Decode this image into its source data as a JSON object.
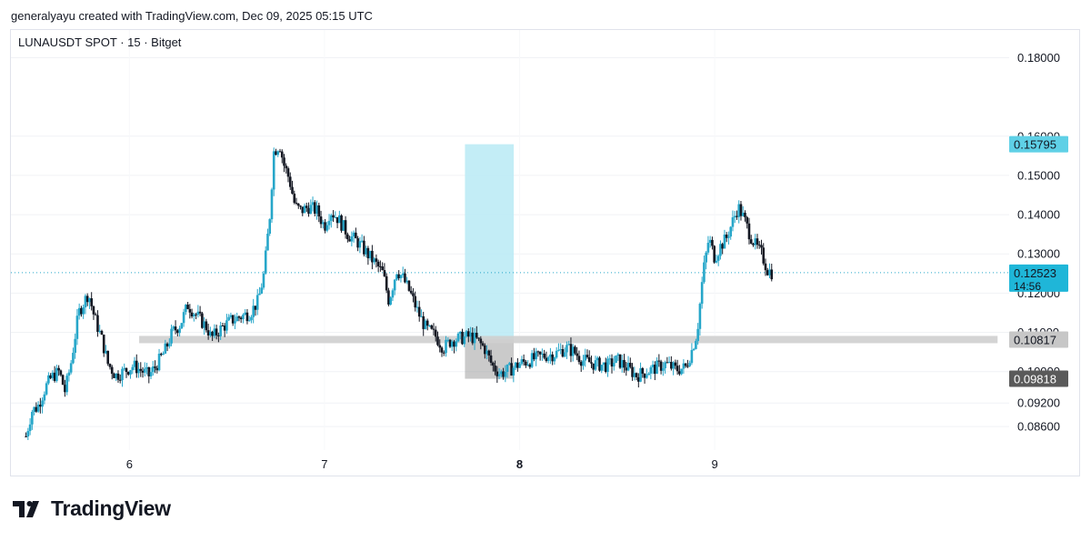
{
  "header": {
    "caption": "generalyayu created with TradingView.com, Dec 09, 2025 05:15 UTC"
  },
  "brand": {
    "name": "TradingView",
    "icon": "tradingview-logo-icon"
  },
  "colors": {
    "up": "#26a6c9",
    "down": "#131722",
    "zone": "#b9eaf5",
    "level": "#cfcfcf",
    "box": "#9e9e9e"
  },
  "chart_data": {
    "type": "candlestick",
    "title": "LUNAUSDT SPOT · 15 · Bitget",
    "ylim": [
      0.08,
      0.1866
    ],
    "y_ticks": [
      "0.18000",
      "0.16000",
      "0.15000",
      "0.14000",
      "0.13000",
      "0.12000",
      "0.11000",
      "0.10000",
      "0.09200",
      "0.08600"
    ],
    "y_tick_values": [
      0.18,
      0.16,
      0.15,
      0.14,
      0.13,
      0.12,
      0.11,
      0.1,
      0.092,
      0.086
    ],
    "x_ticks": [
      {
        "label": "6",
        "x": 6.0,
        "bold": false
      },
      {
        "label": "7",
        "x": 7.0,
        "bold": false
      },
      {
        "label": "8",
        "x": 8.0,
        "bold": true
      },
      {
        "label": "9",
        "x": 9.0,
        "bold": false
      }
    ],
    "xlim": [
      5.43,
      10.5
    ],
    "price_path": [
      [
        5.47,
        0.0835
      ],
      [
        5.5,
        0.09
      ],
      [
        5.53,
        0.091
      ],
      [
        5.57,
        0.096
      ],
      [
        5.6,
        0.0985
      ],
      [
        5.64,
        0.1
      ],
      [
        5.67,
        0.095
      ],
      [
        5.7,
        0.102
      ],
      [
        5.74,
        0.115
      ],
      [
        5.77,
        0.118
      ],
      [
        5.79,
        0.12
      ],
      [
        5.82,
        0.114
      ],
      [
        5.86,
        0.108
      ],
      [
        5.89,
        0.102
      ],
      [
        5.93,
        0.099
      ],
      [
        5.97,
        0.1
      ],
      [
        6.02,
        0.1015
      ],
      [
        6.07,
        0.1
      ],
      [
        6.1,
        0.099
      ],
      [
        6.13,
        0.101
      ],
      [
        6.18,
        0.105
      ],
      [
        6.22,
        0.11
      ],
      [
        6.26,
        0.112
      ],
      [
        6.3,
        0.117
      ],
      [
        6.35,
        0.114
      ],
      [
        6.4,
        0.111
      ],
      [
        6.42,
        0.1085
      ],
      [
        6.47,
        0.111
      ],
      [
        6.52,
        0.113
      ],
      [
        6.57,
        0.114
      ],
      [
        6.62,
        0.115
      ],
      [
        6.66,
        0.118
      ],
      [
        6.69,
        0.125
      ],
      [
        6.72,
        0.14
      ],
      [
        6.74,
        0.156
      ],
      [
        6.77,
        0.158
      ],
      [
        6.79,
        0.153
      ],
      [
        6.82,
        0.149
      ],
      [
        6.85,
        0.142
      ],
      [
        6.88,
        0.141
      ],
      [
        6.92,
        0.142
      ],
      [
        6.96,
        0.141
      ],
      [
        7.0,
        0.137
      ],
      [
        7.03,
        0.141
      ],
      [
        7.07,
        0.139
      ],
      [
        7.12,
        0.135
      ],
      [
        7.17,
        0.133
      ],
      [
        7.22,
        0.13
      ],
      [
        7.27,
        0.127
      ],
      [
        7.3,
        0.125
      ],
      [
        7.33,
        0.118
      ],
      [
        7.37,
        0.126
      ],
      [
        7.4,
        0.124
      ],
      [
        7.44,
        0.12
      ],
      [
        7.48,
        0.115
      ],
      [
        7.52,
        0.111
      ],
      [
        7.57,
        0.109
      ],
      [
        7.61,
        0.106
      ],
      [
        7.65,
        0.108
      ],
      [
        7.7,
        0.1085
      ],
      [
        7.75,
        0.109
      ],
      [
        7.78,
        0.108
      ],
      [
        7.82,
        0.106
      ],
      [
        7.86,
        0.1015
      ],
      [
        7.9,
        0.0995
      ],
      [
        7.95,
        0.1005
      ],
      [
        8.0,
        0.102
      ],
      [
        8.06,
        0.103
      ],
      [
        8.12,
        0.104
      ],
      [
        8.18,
        0.1045
      ],
      [
        8.24,
        0.106
      ],
      [
        8.28,
        0.105
      ],
      [
        8.32,
        0.103
      ],
      [
        8.38,
        0.102
      ],
      [
        8.45,
        0.1015
      ],
      [
        8.5,
        0.103
      ],
      [
        8.55,
        0.101
      ],
      [
        8.6,
        0.099
      ],
      [
        8.65,
        0.1
      ],
      [
        8.7,
        0.101
      ],
      [
        8.75,
        0.102
      ],
      [
        8.8,
        0.1005
      ],
      [
        8.85,
        0.101
      ],
      [
        8.88,
        0.105
      ],
      [
        8.91,
        0.11
      ],
      [
        8.94,
        0.125
      ],
      [
        8.97,
        0.134
      ],
      [
        9.0,
        0.129
      ],
      [
        9.03,
        0.132
      ],
      [
        9.06,
        0.134
      ],
      [
        9.09,
        0.138
      ],
      [
        9.12,
        0.142
      ],
      [
        9.15,
        0.139
      ],
      [
        9.18,
        0.135
      ],
      [
        9.21,
        0.132
      ],
      [
        9.24,
        0.13
      ],
      [
        9.27,
        0.126
      ],
      [
        9.3,
        0.125
      ]
    ],
    "current_price": {
      "value": 0.12523,
      "label": "0.12523",
      "countdown": "14:56"
    },
    "support_level": {
      "value": 0.10817,
      "label": "0.10817",
      "x_start": 6.05,
      "x_end": 10.45
    },
    "target_zone": {
      "x_start": 7.72,
      "x_end": 7.97,
      "y_top": 0.15795,
      "y_bottom": 0.10817,
      "label": "0.15795"
    },
    "stop_zone": {
      "x_start": 7.72,
      "x_end": 7.97,
      "y_top": 0.10817,
      "y_bottom": 0.09818,
      "label": "0.09818"
    },
    "grid": true
  }
}
